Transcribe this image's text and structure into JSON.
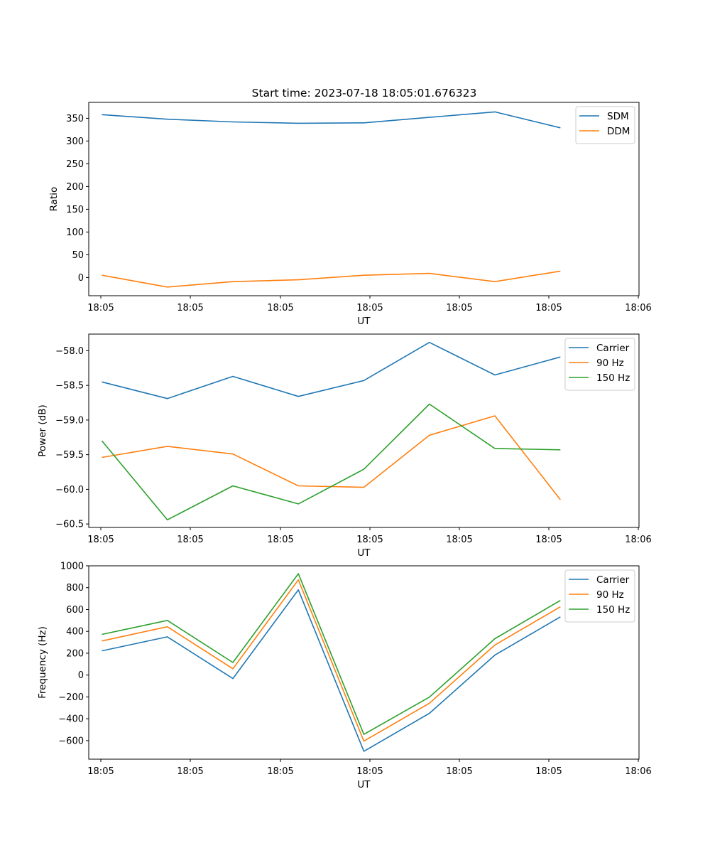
{
  "figure": {
    "title": "Start time: 2023-07-18 18:05:01.676323"
  },
  "chart_data": [
    {
      "type": "line",
      "title": "Start time: 2023-07-18 18:05:01.676323",
      "xlabel": "UT",
      "ylabel": "Ratio",
      "x_tick_labels": [
        "18:05",
        "18:05",
        "18:05",
        "18:05",
        "18:05",
        "18:05",
        "18:05"
      ],
      "x_edge_tick_label": "18:06",
      "x": [
        1,
        2,
        3,
        4,
        5,
        6,
        7,
        8
      ],
      "xlim": [
        0.8,
        9.2
      ],
      "ylim": [
        -40,
        385
      ],
      "yticks": [
        0,
        50,
        100,
        150,
        200,
        250,
        300,
        350
      ],
      "ytick_labels": [
        "0",
        "50",
        "100",
        "150",
        "200",
        "250",
        "300",
        "350"
      ],
      "legend": "top-right",
      "series": [
        {
          "name": "SDM",
          "color": "#1f77b4",
          "values": [
            358,
            348,
            342,
            339,
            340,
            352,
            364,
            329
          ]
        },
        {
          "name": "DDM",
          "color": "#ff7f0e",
          "values": [
            5,
            -21,
            -9,
            -5,
            5,
            9,
            -9,
            14
          ]
        }
      ]
    },
    {
      "type": "line",
      "title": "",
      "xlabel": "UT",
      "ylabel": "Power (dB)",
      "x_tick_labels": [
        "18:05",
        "18:05",
        "18:05",
        "18:05",
        "18:05",
        "18:05",
        "18:05"
      ],
      "x_edge_tick_label": "18:06",
      "x": [
        1,
        2,
        3,
        4,
        5,
        6,
        7,
        8
      ],
      "xlim": [
        0.8,
        9.2
      ],
      "ylim": [
        -60.55,
        -57.76
      ],
      "yticks": [
        -60.5,
        -60.0,
        -59.5,
        -59.0,
        -58.5,
        -58.0
      ],
      "ytick_labels": [
        "−60.5",
        "−60.0",
        "−59.5",
        "−59.0",
        "−58.5",
        "−58.0"
      ],
      "legend": "top-right",
      "series": [
        {
          "name": "Carrier",
          "color": "#1f77b4",
          "values": [
            -58.45,
            -58.69,
            -58.37,
            -58.66,
            -58.43,
            -57.88,
            -58.35,
            -58.09
          ]
        },
        {
          "name": "90 Hz",
          "color": "#ff7f0e",
          "values": [
            -59.54,
            -59.38,
            -59.49,
            -59.95,
            -59.97,
            -59.22,
            -58.94,
            -60.15
          ]
        },
        {
          "name": "150 Hz",
          "color": "#2ca02c",
          "values": [
            -59.3,
            -60.44,
            -59.95,
            -60.21,
            -59.71,
            -58.77,
            -59.41,
            -59.43
          ]
        }
      ]
    },
    {
      "type": "line",
      "title": "",
      "xlabel": "UT",
      "ylabel": "Frequency (Hz)",
      "x_tick_labels": [
        "18:05",
        "18:05",
        "18:05",
        "18:05",
        "18:05",
        "18:05",
        "18:05"
      ],
      "x_edge_tick_label": "18:06",
      "x": [
        1,
        2,
        3,
        4,
        5,
        6,
        7,
        8
      ],
      "xlim": [
        0.8,
        9.2
      ],
      "ylim": [
        -770,
        1000
      ],
      "yticks": [
        -600,
        -400,
        -200,
        0,
        200,
        400,
        600,
        800,
        1000
      ],
      "ytick_labels": [
        "−600",
        "−400",
        "−200",
        "0",
        "200",
        "400",
        "600",
        "800",
        "1000"
      ],
      "legend": "top-right",
      "series": [
        {
          "name": "Carrier",
          "color": "#1f77b4",
          "values": [
            222,
            350,
            -32,
            780,
            -698,
            -350,
            183,
            533
          ]
        },
        {
          "name": "90 Hz",
          "color": "#ff7f0e",
          "values": [
            312,
            442,
            58,
            872,
            -605,
            -258,
            275,
            625
          ]
        },
        {
          "name": "150 Hz",
          "color": "#2ca02c",
          "values": [
            372,
            500,
            115,
            928,
            -543,
            -202,
            333,
            683
          ]
        }
      ]
    }
  ]
}
